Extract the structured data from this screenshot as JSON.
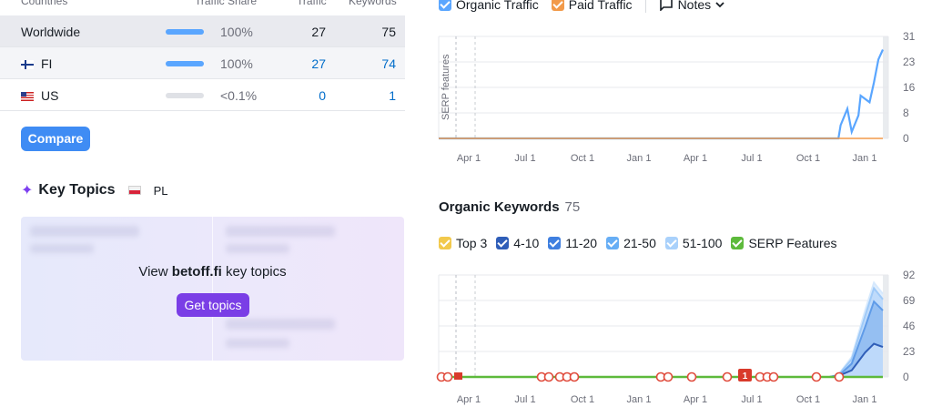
{
  "table": {
    "headers": {
      "countries": "Countries",
      "share": "Traffic Share",
      "traffic": "Traffic",
      "keywords": "Keywords"
    },
    "rows": [
      {
        "country": "Worldwide",
        "flag": "",
        "share_fraction": 1.0,
        "share_text": "100%",
        "traffic": "27",
        "keywords": "75"
      },
      {
        "country": "FI",
        "flag": "flag-fi",
        "share_fraction": 1.0,
        "share_text": "100%",
        "traffic": "27",
        "keywords": "74"
      },
      {
        "country": "US",
        "flag": "flag-us",
        "share_fraction": 0.0,
        "share_text": "<0.1%",
        "traffic": "0",
        "keywords": "1"
      }
    ]
  },
  "compare_label": "Compare",
  "key_topics": {
    "title": "Key Topics",
    "db": "PL",
    "prompt_prefix": "View",
    "domain": "betoff.fi",
    "prompt_suffix": "key topics",
    "button": "Get topics"
  },
  "top_legend": {
    "organic": "Organic Traffic",
    "paid": "Paid Traffic",
    "notes": "Notes",
    "organic_color": "#5aa6ff",
    "paid_color": "#f29a4a"
  },
  "keywords": {
    "title": "Organic Keywords",
    "count": "75",
    "legend": [
      {
        "label": "Top 3",
        "color": "#f2c94c"
      },
      {
        "label": "4-10",
        "color": "#2f5eb8"
      },
      {
        "label": "11-20",
        "color": "#3f7fe0"
      },
      {
        "label": "21-50",
        "color": "#67aef5"
      },
      {
        "label": "51-100",
        "color": "#a9d1fb"
      },
      {
        "label": "SERP Features",
        "color": "#5dba3b"
      }
    ]
  },
  "chart_data": [
    {
      "type": "line",
      "series": [
        {
          "name": "Organic Traffic",
          "color": "#5aa6ff",
          "x": [
            0,
            0.5,
            0.9,
            0.905,
            0.92,
            0.93,
            0.945,
            0.95,
            0.97,
            0.98,
            0.99,
            1.0
          ],
          "y": [
            0,
            0,
            0,
            4,
            9,
            2,
            7,
            13,
            11,
            17,
            24,
            27
          ]
        },
        {
          "name": "Paid Traffic",
          "color": "#f29a4a",
          "x": [
            0,
            1
          ],
          "y": [
            0,
            0
          ]
        }
      ],
      "x_ticks": [
        "Apr 1",
        "Jul 1",
        "Oct 1",
        "Jan 1",
        "Apr 1",
        "Jul 1",
        "Oct 1",
        "Jan 1"
      ],
      "y_ticks": [
        "31",
        "23",
        "16",
        "8",
        "0"
      ],
      "ylim": [
        0,
        31
      ],
      "annotation": "SERP features"
    },
    {
      "type": "area",
      "x_ticks": [
        "Apr 1",
        "Jul 1",
        "Oct 1",
        "Jan 1",
        "Apr 1",
        "Jul 1",
        "Oct 1",
        "Jan 1"
      ],
      "y_ticks": [
        "92",
        "69",
        "46",
        "23",
        "0"
      ],
      "ylim": [
        0,
        92
      ],
      "series": [
        {
          "name": "51-100",
          "x": [
            0,
            0.88,
            0.9,
            0.93,
            0.96,
            0.98,
            1.0
          ],
          "y": [
            0,
            0,
            2,
            18,
            60,
            85,
            75
          ]
        },
        {
          "name": "21-50",
          "x": [
            0,
            0.88,
            0.9,
            0.93,
            0.96,
            0.98,
            1.0
          ],
          "y": [
            0,
            0,
            2,
            16,
            55,
            80,
            70
          ]
        },
        {
          "name": "11-20",
          "x": [
            0,
            0.88,
            0.9,
            0.93,
            0.96,
            0.98,
            1.0
          ],
          "y": [
            0,
            0,
            1,
            12,
            45,
            68,
            60
          ]
        },
        {
          "name": "4-10",
          "x": [
            0,
            0.88,
            0.9,
            0.93,
            0.96,
            0.98,
            1.0
          ],
          "y": [
            0,
            0,
            1,
            6,
            22,
            30,
            27
          ]
        }
      ],
      "note_marker": "1"
    }
  ]
}
